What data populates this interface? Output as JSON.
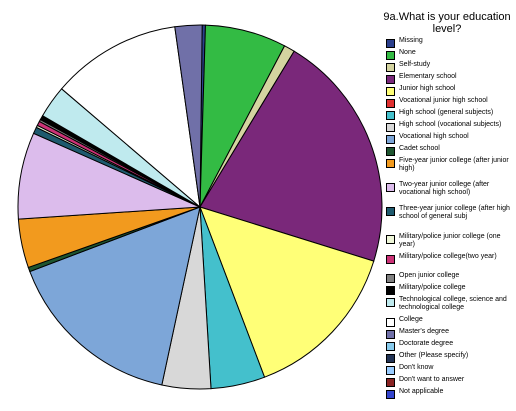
{
  "chart_data": {
    "type": "pie",
    "title": "9a.What is your education level?",
    "slices": [
      {
        "label": "Missing",
        "value": 0.3,
        "color": "#2b3f8c"
      },
      {
        "label": "None",
        "value": 7.5,
        "color": "#33bb44"
      },
      {
        "label": "Self-study",
        "value": 1.0,
        "color": "#d4d4a0"
      },
      {
        "label": "Elementary school",
        "value": 22.0,
        "color": "#7a287a"
      },
      {
        "label": "Junior high school",
        "value": 15.0,
        "color": "#ffff77"
      },
      {
        "label": "Vocational junior high school",
        "value": 0.0,
        "color": "#e03030"
      },
      {
        "label": "High school (general subjects)",
        "value": 5.0,
        "color": "#44c0cc"
      },
      {
        "label": "High school (vocational subjects)",
        "value": 4.5,
        "color": "#d8d8d8"
      },
      {
        "label": "Vocational high school",
        "value": 16.5,
        "color": "#7da6d8"
      },
      {
        "label": "Cadet school",
        "value": 0.4,
        "color": "#1e5530"
      },
      {
        "label": "Five-year junior college (after junior high)",
        "value": 4.5,
        "color": "#f29a1e"
      },
      {
        "label": "Two-year junior college (after vocational high school)",
        "value": 8.0,
        "color": "#dcbcec"
      },
      {
        "label": "Three-year junior college (after high school of general subj",
        "value": 0.6,
        "color": "#1e5a6e"
      },
      {
        "label": "Military/police junior college (one year)",
        "value": 0.2,
        "color": "#eef6d8"
      },
      {
        "label": "Military/police college(two year)",
        "value": 0.4,
        "color": "#cc3377"
      },
      {
        "label": "Open junior college",
        "value": 0.2,
        "color": "#808080"
      },
      {
        "label": "Military/police college",
        "value": 0.4,
        "color": "#000000"
      },
      {
        "label": "Technological college, science and technological college",
        "value": 3.0,
        "color": "#bfeaee"
      },
      {
        "label": "College",
        "value": 12.0,
        "color": "#ffffff"
      },
      {
        "label": "Master's degree",
        "value": 2.5,
        "color": "#7070a8"
      },
      {
        "label": "Doctorate degree",
        "value": 0.0,
        "color": "#88ccee"
      },
      {
        "label": "Other (Please specify)",
        "value": 0.0,
        "color": "#223355"
      },
      {
        "label": "Don't know",
        "value": 0.0,
        "color": "#99ccff"
      },
      {
        "label": "Don't want to answer",
        "value": 0.0,
        "color": "#882222"
      },
      {
        "label": "Not applicable",
        "value": 0.0,
        "color": "#3344cc"
      }
    ]
  }
}
